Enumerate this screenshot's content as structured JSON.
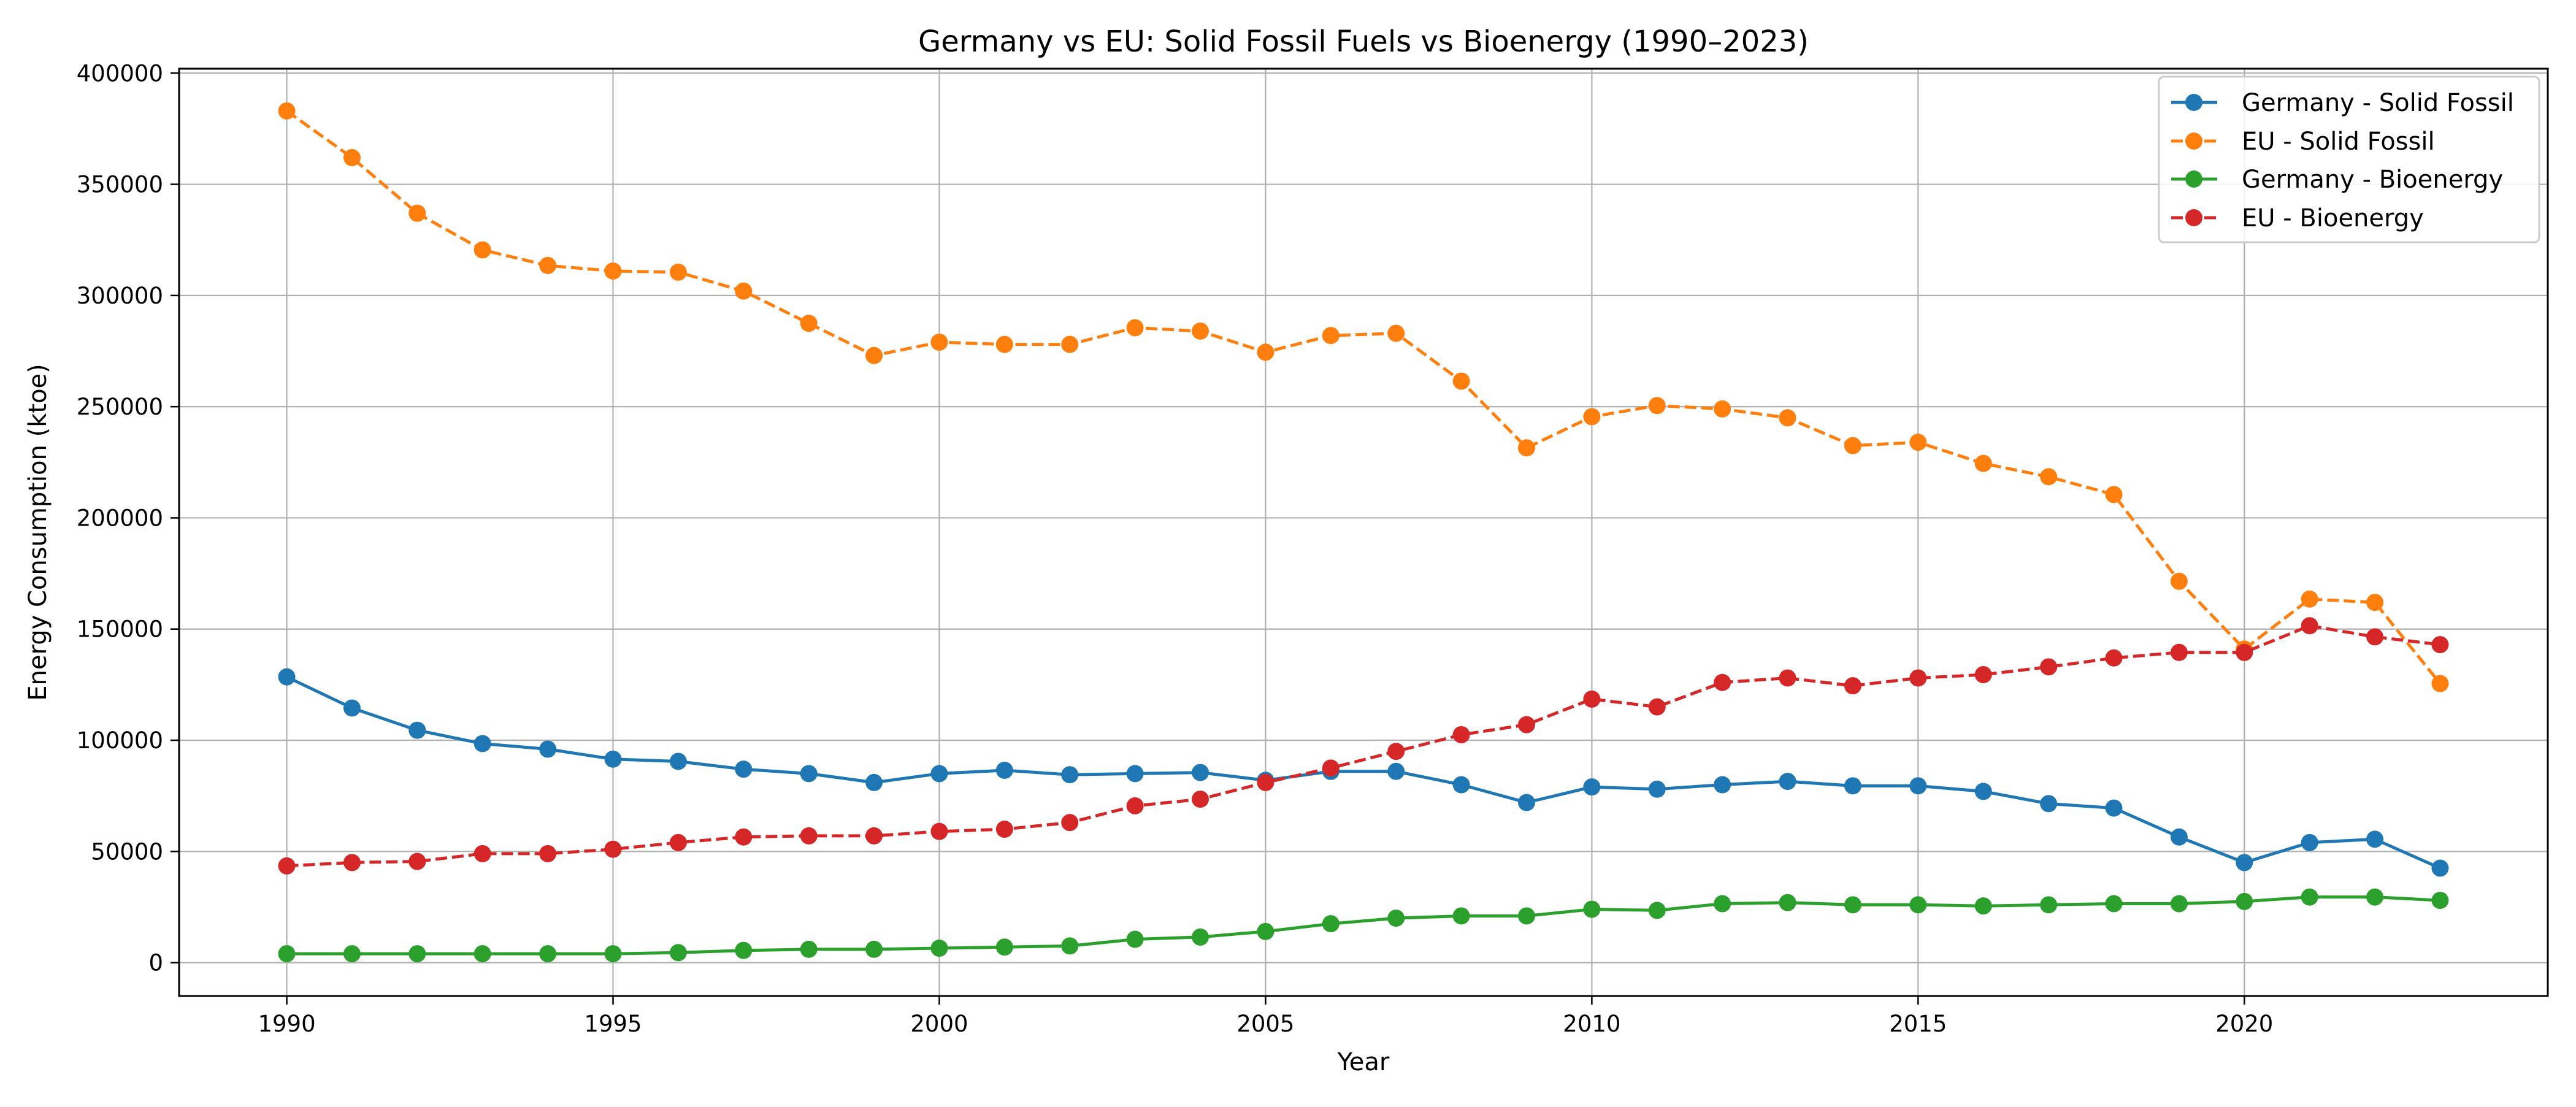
{
  "chart_data": {
    "type": "line",
    "title": "Germany vs EU: Solid Fossil Fuels vs Bioenergy (1990–2023)",
    "xlabel": "Year",
    "ylabel": "Energy Consumption (ktoe)",
    "xlim": [
      1988.35,
      2024.65
    ],
    "ylim": [
      -15000,
      402000
    ],
    "xticks": [
      1990,
      1995,
      2000,
      2005,
      2010,
      2015,
      2020
    ],
    "yticks": [
      0,
      50000,
      100000,
      150000,
      200000,
      250000,
      300000,
      350000,
      400000
    ],
    "grid": true,
    "legend_position": "top-right",
    "x": [
      1990,
      1991,
      1992,
      1993,
      1994,
      1995,
      1996,
      1997,
      1998,
      1999,
      2000,
      2001,
      2002,
      2003,
      2004,
      2005,
      2006,
      2007,
      2008,
      2009,
      2010,
      2011,
      2012,
      2013,
      2014,
      2015,
      2016,
      2017,
      2018,
      2019,
      2020,
      2021,
      2022,
      2023
    ],
    "series": [
      {
        "name": "Germany - Solid Fossil",
        "color": "#1f77b4",
        "dashed": false,
        "values": [
          128500,
          114500,
          104500,
          98500,
          96000,
          91500,
          90500,
          87000,
          85000,
          81000,
          85000,
          86500,
          84500,
          85000,
          85500,
          82000,
          86000,
          86000,
          80000,
          72000,
          79000,
          78000,
          80000,
          81500,
          79500,
          79500,
          77000,
          71500,
          69500,
          56500,
          45000,
          54000,
          55500,
          42500
        ]
      },
      {
        "name": "EU - Solid Fossil",
        "color": "#ff7f0e",
        "dashed": true,
        "values": [
          383000,
          362000,
          337000,
          320500,
          313500,
          311000,
          310500,
          302000,
          287500,
          273000,
          279000,
          278000,
          278000,
          285500,
          284000,
          274500,
          282000,
          283000,
          261500,
          231500,
          245500,
          250500,
          249000,
          245000,
          232500,
          234000,
          224500,
          218500,
          210500,
          171500,
          141000,
          163500,
          162000,
          125500
        ]
      },
      {
        "name": "Germany - Bioenergy",
        "color": "#2ca02c",
        "dashed": false,
        "values": [
          4000,
          4000,
          4000,
          4000,
          4000,
          4000,
          4500,
          5500,
          6000,
          6000,
          6500,
          7000,
          7500,
          10500,
          11500,
          14000,
          17500,
          20000,
          21000,
          21000,
          24000,
          23500,
          26500,
          27000,
          26000,
          26000,
          25500,
          26000,
          26500,
          26500,
          27500,
          29500,
          29500,
          28000
        ]
      },
      {
        "name": "EU - Bioenergy",
        "color": "#d62728",
        "dashed": true,
        "values": [
          43500,
          45000,
          45500,
          49000,
          49000,
          51000,
          54000,
          56500,
          57000,
          57000,
          59000,
          60000,
          63000,
          70500,
          73500,
          81000,
          87500,
          95000,
          102500,
          107000,
          118500,
          115000,
          126000,
          128000,
          124500,
          128000,
          129500,
          133000,
          137000,
          139500,
          139500,
          151500,
          146500,
          143000
        ]
      }
    ]
  }
}
